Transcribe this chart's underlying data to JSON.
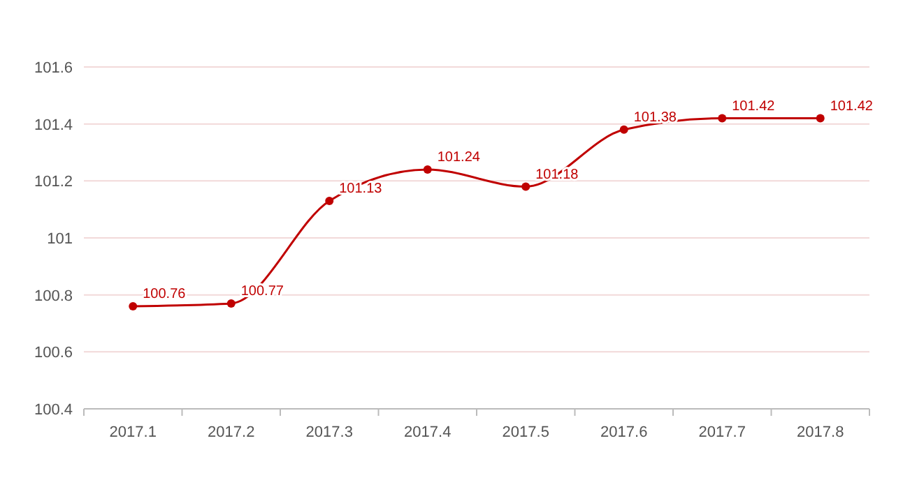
{
  "chart_data": {
    "type": "line",
    "categories": [
      "2017.1",
      "2017.2",
      "2017.3",
      "2017.4",
      "2017.5",
      "2017.6",
      "2017.7",
      "2017.8"
    ],
    "values": [
      100.76,
      100.77,
      101.13,
      101.24,
      101.18,
      101.38,
      101.42,
      101.42
    ],
    "color": "#c00000",
    "ylim": [
      100.4,
      101.6
    ],
    "yticks": [
      100.4,
      100.6,
      100.8,
      101,
      101.2,
      101.4,
      101.6
    ],
    "grid": "y",
    "marker": "circle",
    "line_style": "solid",
    "data_labels": true
  }
}
